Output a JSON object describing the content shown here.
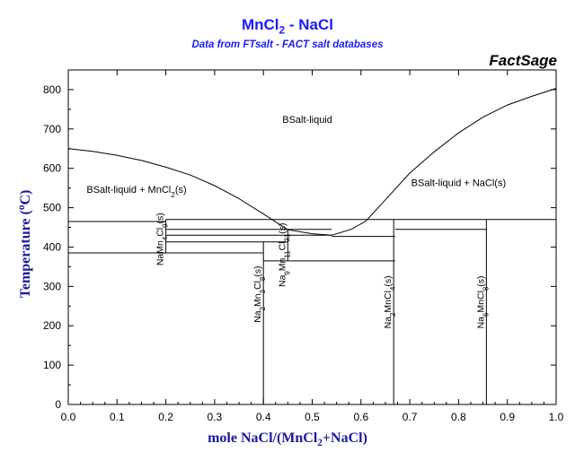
{
  "chart_data": {
    "type": "phase-diagram",
    "title": "MnCl2 - NaCl",
    "subtitle": "Data from FTsalt - FACT salt databases",
    "brand": "FactSage",
    "xlabel": "mole NaCl/(MnCl2+NaCl)",
    "ylabel": "Temperature (°C)",
    "xlim": [
      0,
      1
    ],
    "ylim": [
      0,
      850
    ],
    "xticks": [
      0.0,
      0.1,
      0.2,
      0.3,
      0.4,
      0.5,
      0.6,
      0.7,
      0.8,
      0.9,
      1.0
    ],
    "yticks": [
      0,
      100,
      200,
      300,
      400,
      500,
      600,
      700,
      800
    ],
    "xtick_labels": [
      "0.0",
      "0.1",
      "0.2",
      "0.3",
      "0.4",
      "0.5",
      "0.6",
      "0.7",
      "0.8",
      "0.9",
      "1.0"
    ],
    "ytick_labels": [
      "0",
      "100",
      "200",
      "300",
      "400",
      "500",
      "600",
      "700",
      "800"
    ],
    "liquidus_left": [
      [
        0.0,
        650
      ],
      [
        0.05,
        643
      ],
      [
        0.1,
        633
      ],
      [
        0.15,
        620
      ],
      [
        0.2,
        603
      ],
      [
        0.25,
        583
      ],
      [
        0.3,
        556
      ],
      [
        0.35,
        523
      ],
      [
        0.4,
        484
      ],
      [
        0.45,
        444
      ],
      [
        0.5,
        434
      ],
      [
        0.54,
        430
      ]
    ],
    "liquidus_right": [
      [
        0.54,
        430
      ],
      [
        0.58,
        445
      ],
      [
        0.61,
        466
      ],
      [
        0.65,
        520
      ],
      [
        0.7,
        588
      ],
      [
        0.75,
        642
      ],
      [
        0.8,
        690
      ],
      [
        0.85,
        730
      ],
      [
        0.9,
        761
      ],
      [
        0.95,
        783
      ],
      [
        1.0,
        803
      ]
    ],
    "horizontal_lines": [
      {
        "x1": 0.0,
        "x2": 0.2,
        "y": 465
      },
      {
        "x1": 0.2,
        "x2": 1.0,
        "y": 470
      },
      {
        "x1": 0.2,
        "x2": 0.54,
        "y": 445
      },
      {
        "x1": 0.2,
        "x2": 0.54,
        "y": 430
      },
      {
        "x1": 0.2,
        "x2": 0.45,
        "y": 413
      },
      {
        "x1": 0.0,
        "x2": 0.4,
        "y": 385
      },
      {
        "x1": 0.4,
        "x2": 0.67,
        "y": 365
      },
      {
        "x1": 0.54,
        "x2": 0.67,
        "y": 427
      },
      {
        "x1": 0.67,
        "x2": 0.857,
        "y": 445
      }
    ],
    "vertical_lines": [
      {
        "x": 0.2,
        "y1": 385,
        "y2": 470
      },
      {
        "x": 0.4,
        "y1": 0,
        "y2": 413
      },
      {
        "x": 0.45,
        "y1": 365,
        "y2": 445
      },
      {
        "x": 0.667,
        "y1": 0,
        "y2": 470
      },
      {
        "x": 0.857,
        "y1": 0,
        "y2": 470
      }
    ],
    "region_labels": [
      {
        "text": "BSalt-liquid",
        "x": 0.49,
        "y": 715
      },
      {
        "text": "BSalt-liquid + MnCl2(s)",
        "x": 0.14,
        "y": 538
      },
      {
        "text": "BSalt-liquid + NaCl(s)",
        "x": 0.8,
        "y": 555
      }
    ],
    "compound_labels": [
      {
        "text": "NaMn4Cl9(s)",
        "x": 0.2,
        "y": 420
      },
      {
        "text": "Na9Mn11Cl31(s)",
        "x": 0.45,
        "y": 380
      },
      {
        "text": "Na2Mn3Cl8(s)",
        "x": 0.4,
        "y": 280
      },
      {
        "text": "Na2MnCl4(s)",
        "x": 0.667,
        "y": 260
      },
      {
        "text": "Na6MnCl8(s)",
        "x": 0.857,
        "y": 260
      }
    ]
  }
}
